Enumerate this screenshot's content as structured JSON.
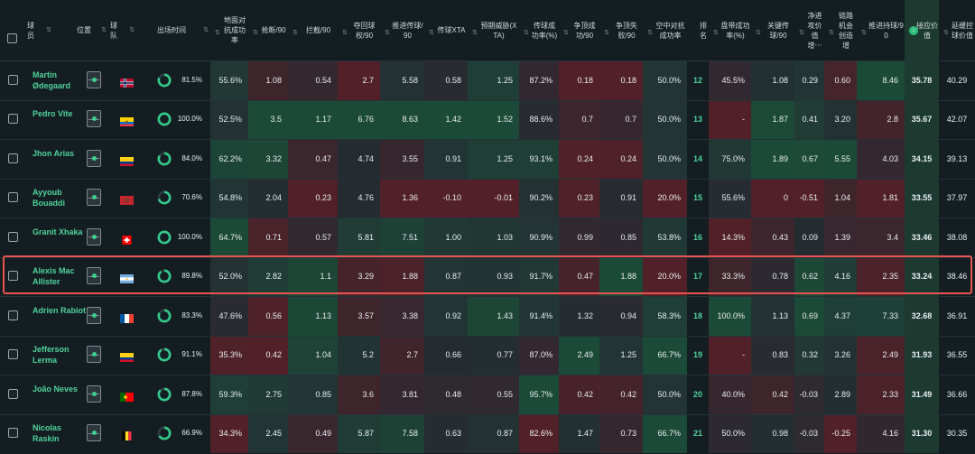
{
  "colors": {
    "background": "#141e22",
    "accent": "#4fd19b",
    "highlight_border": "#e8554f",
    "sort_active": "#2fbf7a"
  },
  "header": {
    "select_all_icon": "checkbox-icon",
    "columns": [
      {
        "key": "player",
        "label": "球员",
        "sort": "⇅"
      },
      {
        "key": "position",
        "label": "位置",
        "sort": "⇅"
      },
      {
        "key": "team",
        "label": "球队",
        "sort": "⇅"
      },
      {
        "key": "minutes",
        "label": "出场时间",
        "sort": "⇅"
      },
      {
        "key": "ground_duel",
        "label": "地面对抗成功率",
        "sort": "⇅"
      },
      {
        "key": "tackles",
        "label": "抢断/90",
        "sort": "⇅"
      },
      {
        "key": "interceptions",
        "label": "拦截/90",
        "sort": "⇅"
      },
      {
        "key": "recoveries",
        "label": "夺回球权/90",
        "sort": "⇅"
      },
      {
        "key": "prog_passes",
        "label": "推进传球/90",
        "sort": "⇅"
      },
      {
        "key": "pass_xta",
        "label": "传球XTA",
        "sort": "⇅"
      },
      {
        "key": "expected_threat",
        "label": "预期威胁(XTA)",
        "sort": "⇅"
      },
      {
        "key": "pass_success",
        "label": "传球成功率(%)",
        "sort": "⇅"
      },
      {
        "key": "header_success",
        "label": "争顶成功/90",
        "sort": "⇅"
      },
      {
        "key": "header_lost",
        "label": "争顶失败/90",
        "sort": "⇅"
      },
      {
        "key": "aerial_duel",
        "label": "空中对抗成功率",
        "sort": "⇅"
      },
      {
        "key": "rank",
        "label": "排名",
        "sort": ""
      },
      {
        "key": "dribble_success",
        "label": "盘带成功率(%)",
        "sort": "⇅"
      },
      {
        "key": "key_passes",
        "label": "关键传球/90",
        "sort": "⇅"
      },
      {
        "key": "net_attack",
        "label": "净进攻价值增⋯",
        "sort": "⇅"
      },
      {
        "key": "chain_chance",
        "label": "链路机会创造增",
        "sort": "⇅"
      },
      {
        "key": "prog_carry",
        "label": "推进持球/90",
        "sort": "⇅"
      },
      {
        "key": "value",
        "label": "接应价值",
        "sort": "↓"
      },
      {
        "key": "delay",
        "label": "延缓控球价值",
        "sort": "⇅"
      }
    ]
  },
  "rows": [
    {
      "name": "Martin Ødegaard",
      "flag": "norway-flag",
      "minutes_pct": "81.5%",
      "minutes_frac": 0.815,
      "values": [
        "55.6%",
        "1.08",
        "0.54",
        "2.7",
        "5.58",
        "0.58",
        "1.25",
        "87.2%",
        "0.18",
        "0.18",
        "50.0%",
        "12",
        "45.5%",
        "1.08",
        "0.29",
        "0.60",
        "8.46",
        "35.78",
        "40.29"
      ]
    },
    {
      "name": "Pedro Vite",
      "flag": "ecuador-flag",
      "minutes_pct": "100.0%",
      "minutes_frac": 1.0,
      "values": [
        "52.5%",
        "3.5",
        "1.17",
        "6.76",
        "8.63",
        "1.42",
        "1.52",
        "88.6%",
        "0.7",
        "0.7",
        "50.0%",
        "13",
        "-",
        "1.87",
        "0.41",
        "3.20",
        "2.8",
        "35.67",
        "42.07"
      ]
    },
    {
      "name": "Jhon Arias",
      "flag": "colombia-flag",
      "minutes_pct": "84.0%",
      "minutes_frac": 0.84,
      "values": [
        "62.2%",
        "3.32",
        "0.47",
        "4.74",
        "3.55",
        "0.91",
        "1.25",
        "93.1%",
        "0.24",
        "0.24",
        "50.0%",
        "14",
        "75.0%",
        "1.89",
        "0.67",
        "5.55",
        "4.03",
        "34.15",
        "39.13"
      ]
    },
    {
      "name": "Ayyoub Bouaddi",
      "flag": "morocco-flag",
      "minutes_pct": "70.6%",
      "minutes_frac": 0.706,
      "values": [
        "54.8%",
        "2.04",
        "0.23",
        "4.76",
        "1.36",
        "-0.10",
        "-0.01",
        "90.2%",
        "0.23",
        "0.91",
        "20.0%",
        "15",
        "55.6%",
        "0",
        "-0.51",
        "1.04",
        "1.81",
        "33.55",
        "37.97"
      ]
    },
    {
      "name": "Granit Xhaka",
      "flag": "switzerland-flag",
      "minutes_pct": "100.0%",
      "minutes_frac": 1.0,
      "values": [
        "64.7%",
        "0.71",
        "0.57",
        "5.81",
        "7.51",
        "1.00",
        "1.03",
        "90.9%",
        "0.99",
        "0.85",
        "53.8%",
        "16",
        "14.3%",
        "0.43",
        "0.09",
        "1.39",
        "3.4",
        "33.46",
        "38.08"
      ]
    },
    {
      "name": "Alexis Mac Allister",
      "flag": "argentina-flag",
      "minutes_pct": "89.8%",
      "minutes_frac": 0.898,
      "values": [
        "52.0%",
        "2.82",
        "1.1",
        "3.29",
        "1.88",
        "0.87",
        "0.93",
        "91.7%",
        "0.47",
        "1.88",
        "20.0%",
        "17",
        "33.3%",
        "0.78",
        "0.62",
        "4.16",
        "2.35",
        "33.24",
        "38.46"
      ]
    },
    {
      "name": "Adrien Rabiot",
      "flag": "france-flag",
      "minutes_pct": "83.3%",
      "minutes_frac": 0.833,
      "values": [
        "47.6%",
        "0.56",
        "1.13",
        "3.57",
        "3.38",
        "0.92",
        "1.43",
        "91.4%",
        "1.32",
        "0.94",
        "58.3%",
        "18",
        "100.0%",
        "1.13",
        "0.69",
        "4.37",
        "7.33",
        "32.68",
        "36.91"
      ]
    },
    {
      "name": "Jefferson Lerma",
      "flag": "colombia-flag",
      "minutes_pct": "91.1%",
      "minutes_frac": 0.911,
      "values": [
        "35.3%",
        "0.42",
        "1.04",
        "5.2",
        "2.7",
        "0.66",
        "0.77",
        "87.0%",
        "2.49",
        "1.25",
        "66.7%",
        "19",
        "-",
        "0.83",
        "0.32",
        "3.26",
        "2.49",
        "31.93",
        "36.55"
      ]
    },
    {
      "name": "João Neves",
      "flag": "portugal-flag",
      "minutes_pct": "87.8%",
      "minutes_frac": 0.878,
      "values": [
        "59.3%",
        "2.75",
        "0.85",
        "3.6",
        "3.81",
        "0.48",
        "0.55",
        "95.7%",
        "0.42",
        "0.42",
        "50.0%",
        "20",
        "40.0%",
        "0.42",
        "-0.03",
        "2.89",
        "2.33",
        "31.49",
        "36.66"
      ]
    },
    {
      "name": "Nicolas Raskin",
      "flag": "belgium-flag",
      "minutes_pct": "66.9%",
      "minutes_frac": 0.669,
      "values": [
        "34.3%",
        "2.45",
        "0.49",
        "5.87",
        "7.58",
        "0.63",
        "0.87",
        "82.6%",
        "1.47",
        "0.73",
        "66.7%",
        "21",
        "50.0%",
        "0.98",
        "-0.03",
        "-0.25",
        "4.16",
        "31.30",
        "30.35"
      ]
    }
  ]
}
